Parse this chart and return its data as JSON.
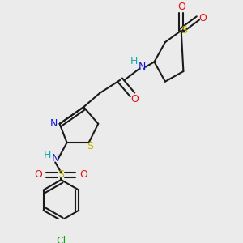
{
  "background_color": "#ebebeb",
  "bond_color": "#1a1a1a",
  "bond_width": 1.5,
  "figsize": [
    3.0,
    3.0
  ],
  "dpi": 100,
  "colors": {
    "C": "#1a1a1a",
    "N": "#1414e0",
    "O": "#e01414",
    "S": "#c8b400",
    "Cl": "#14a014",
    "H": "#14aaaa"
  }
}
